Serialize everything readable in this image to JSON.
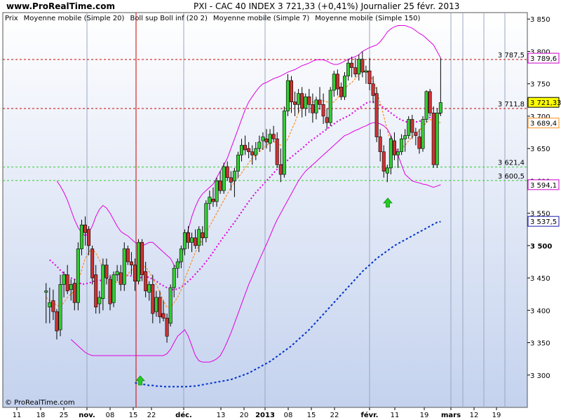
{
  "header": {
    "site": "www.ProRealTime.com",
    "title": "PXI - CAC 40 INDEX    3 721,33 (+0,41%)    Journalier  25 févr. 2013"
  },
  "legend": [
    {
      "label": "Prix",
      "color": "#000000"
    },
    {
      "label": "Moyenne mobile (Simple 20)",
      "color": "#cc00cc"
    },
    {
      "label": "Boll sup Boll inf (20 2)",
      "color": "#cc00cc"
    },
    {
      "label": "Moyenne mobile (Simple 7)",
      "color": "#ff8c1a"
    },
    {
      "label": "Moyenne mobile (Simple 150)",
      "color": "#1a1aaa"
    }
  ],
  "copyright": "© ProRealTime.com",
  "colors": {
    "up": "#33cc33",
    "down": "#cc3333",
    "bollinger": "#e000e0",
    "ma20": "#e000e0",
    "ma7": "#ff8c1a",
    "ma150": "#0033cc",
    "resistance": "#cc0000",
    "support": "#33cc33"
  },
  "price_tags": [
    {
      "value": "3 789,6",
      "border": "#cc00cc",
      "bg": "#ffffff",
      "text": "#cc00cc"
    },
    {
      "value": "3 721,33",
      "border": "#000000",
      "bg": "#ffff00",
      "text": "#000000"
    },
    {
      "value": "3 689,4",
      "border": "#ff8c1a",
      "bg": "#ffffff",
      "text": "#ff8c1a"
    },
    {
      "value": "3 594,1",
      "border": "#cc00cc",
      "bg": "#ffffff",
      "text": "#cc00cc"
    },
    {
      "value": "3 537,5",
      "border": "#1a1aaa",
      "bg": "#ffffff",
      "text": "#1a1aaa"
    }
  ],
  "hlines": [
    {
      "label": "3 787,5",
      "color": "#cc0000"
    },
    {
      "label": "3 711,8",
      "color": "#cc0000"
    },
    {
      "label": "3 621,4",
      "color": "#33cc33"
    },
    {
      "label": "3 600,5",
      "color": "#33cc33"
    }
  ],
  "chart_data": {
    "type": "candlestick",
    "ylim": [
      3250,
      3860
    ],
    "y_ticks": [
      "3 300",
      "3 350",
      "3 400",
      "3 450",
      "3 500",
      "3 550",
      "3 600",
      "3 650",
      "3 700",
      "3 750",
      "3 800",
      "3 850"
    ],
    "x_ticks": [
      "11",
      "18",
      "25",
      "nov.",
      "08",
      "15",
      "22",
      "déc.",
      "13",
      "20",
      "2013",
      "08",
      "15",
      "22",
      "févr.",
      "11",
      "19",
      "mars",
      "12",
      "19"
    ],
    "bold_x_ticks": [
      "nov.",
      "déc.",
      "2013",
      "févr.",
      "mars"
    ],
    "horizontal_levels": [
      3787.5,
      3711.8,
      3621.4,
      3600.5
    ],
    "candles_ohlc": [
      [
        3428,
        3442,
        3380,
        3430
      ],
      [
        3405,
        3435,
        3380,
        3412
      ],
      [
        3415,
        3432,
        3385,
        3398
      ],
      [
        3398,
        3402,
        3355,
        3368
      ],
      [
        3370,
        3455,
        3360,
        3440
      ],
      [
        3440,
        3460,
        3420,
        3455
      ],
      [
        3455,
        3470,
        3425,
        3430
      ],
      [
        3432,
        3448,
        3415,
        3440
      ],
      [
        3442,
        3448,
        3400,
        3412
      ],
      [
        3412,
        3505,
        3400,
        3495
      ],
      [
        3495,
        3540,
        3485,
        3532
      ],
      [
        3532,
        3545,
        3500,
        3520
      ],
      [
        3525,
        3530,
        3485,
        3500
      ],
      [
        3495,
        3500,
        3440,
        3450
      ],
      [
        3455,
        3470,
        3395,
        3405
      ],
      [
        3410,
        3430,
        3395,
        3420
      ],
      [
        3418,
        3480,
        3400,
        3470
      ],
      [
        3470,
        3480,
        3440,
        3450
      ],
      [
        3448,
        3455,
        3400,
        3410
      ],
      [
        3412,
        3460,
        3405,
        3455
      ],
      [
        3455,
        3470,
        3445,
        3460
      ],
      [
        3458,
        3470,
        3430,
        3440
      ],
      [
        3440,
        3505,
        3430,
        3495
      ],
      [
        3495,
        3500,
        3470,
        3475
      ],
      [
        3475,
        3490,
        3455,
        3470
      ],
      [
        3470,
        3480,
        3430,
        3445
      ],
      [
        3445,
        3510,
        3440,
        3505
      ],
      [
        3505,
        3510,
        3445,
        3455
      ],
      [
        3460,
        3475,
        3420,
        3430
      ],
      [
        3428,
        3445,
        3415,
        3440
      ],
      [
        3440,
        3455,
        3380,
        3395
      ],
      [
        3398,
        3430,
        3390,
        3420
      ],
      [
        3420,
        3430,
        3380,
        3390
      ],
      [
        3395,
        3415,
        3383,
        3388
      ],
      [
        3388,
        3395,
        3350,
        3360
      ],
      [
        3380,
        3440,
        3375,
        3435
      ],
      [
        3435,
        3470,
        3420,
        3465
      ],
      [
        3465,
        3480,
        3450,
        3475
      ],
      [
        3475,
        3500,
        3465,
        3495
      ],
      [
        3495,
        3525,
        3485,
        3520
      ],
      [
        3520,
        3530,
        3495,
        3505
      ],
      [
        3505,
        3520,
        3490,
        3512
      ],
      [
        3512,
        3525,
        3495,
        3500
      ],
      [
        3500,
        3530,
        3490,
        3525
      ],
      [
        3520,
        3530,
        3500,
        3512
      ],
      [
        3512,
        3570,
        3505,
        3565
      ],
      [
        3565,
        3585,
        3555,
        3575
      ],
      [
        3572,
        3590,
        3560,
        3568
      ],
      [
        3568,
        3605,
        3560,
        3600
      ],
      [
        3600,
        3615,
        3580,
        3585
      ],
      [
        3585,
        3628,
        3580,
        3622
      ],
      [
        3622,
        3630,
        3600,
        3605
      ],
      [
        3605,
        3615,
        3585,
        3598
      ],
      [
        3600,
        3620,
        3575,
        3615
      ],
      [
        3615,
        3645,
        3605,
        3640
      ],
      [
        3640,
        3665,
        3630,
        3655
      ],
      [
        3655,
        3670,
        3640,
        3648
      ],
      [
        3650,
        3660,
        3635,
        3645
      ],
      [
        3645,
        3655,
        3625,
        3640
      ],
      [
        3640,
        3660,
        3632,
        3650
      ],
      [
        3650,
        3670,
        3645,
        3660
      ],
      [
        3662,
        3675,
        3648,
        3668
      ],
      [
        3665,
        3680,
        3650,
        3660
      ],
      [
        3658,
        3680,
        3645,
        3672
      ],
      [
        3672,
        3685,
        3660,
        3665
      ],
      [
        3665,
        3675,
        3620,
        3625
      ],
      [
        3625,
        3650,
        3598,
        3610
      ],
      [
        3610,
        3715,
        3605,
        3708
      ],
      [
        3708,
        3765,
        3700,
        3755
      ],
      [
        3755,
        3762,
        3705,
        3722
      ],
      [
        3722,
        3738,
        3700,
        3718
      ],
      [
        3718,
        3742,
        3705,
        3735
      ],
      [
        3735,
        3745,
        3698,
        3712
      ],
      [
        3712,
        3735,
        3700,
        3730
      ],
      [
        3730,
        3742,
        3705,
        3718
      ],
      [
        3718,
        3735,
        3690,
        3705
      ],
      [
        3705,
        3730,
        3695,
        3725
      ],
      [
        3725,
        3745,
        3710,
        3718
      ],
      [
        3718,
        3735,
        3688,
        3700
      ],
      [
        3698,
        3712,
        3680,
        3690
      ],
      [
        3690,
        3745,
        3685,
        3740
      ],
      [
        3740,
        3770,
        3730,
        3765
      ],
      [
        3765,
        3772,
        3732,
        3742
      ],
      [
        3745,
        3752,
        3725,
        3730
      ],
      [
        3730,
        3768,
        3725,
        3762
      ],
      [
        3762,
        3788,
        3755,
        3782
      ],
      [
        3782,
        3792,
        3760,
        3775
      ],
      [
        3775,
        3790,
        3760,
        3765
      ],
      [
        3765,
        3795,
        3755,
        3788
      ],
      [
        3788,
        3800,
        3760,
        3768
      ],
      [
        3768,
        3778,
        3750,
        3770
      ],
      [
        3770,
        3790,
        3740,
        3750
      ],
      [
        3750,
        3762,
        3720,
        3732
      ],
      [
        3735,
        3745,
        3660,
        3668
      ],
      [
        3668,
        3680,
        3630,
        3645
      ],
      [
        3645,
        3655,
        3605,
        3615
      ],
      [
        3612,
        3625,
        3598,
        3620
      ],
      [
        3620,
        3670,
        3610,
        3665
      ],
      [
        3662,
        3675,
        3632,
        3640
      ],
      [
        3640,
        3650,
        3620,
        3645
      ],
      [
        3645,
        3672,
        3640,
        3665
      ],
      [
        3665,
        3680,
        3645,
        3670
      ],
      [
        3670,
        3700,
        3665,
        3695
      ],
      [
        3695,
        3702,
        3665,
        3675
      ],
      [
        3675,
        3682,
        3655,
        3670
      ],
      [
        3668,
        3680,
        3642,
        3650
      ],
      [
        3650,
        3700,
        3645,
        3695
      ],
      [
        3695,
        3740,
        3690,
        3738
      ],
      [
        3738,
        3742,
        3700,
        3705
      ],
      [
        3705,
        3715,
        3620,
        3625
      ],
      [
        3625,
        3712,
        3620,
        3705
      ],
      [
        3705,
        3790,
        3700,
        3721
      ]
    ],
    "series": [
      {
        "name": "Moyenne mobile (Simple 20)",
        "x_end": 122,
        "values": [
          3478,
          3473,
          3468,
          3462,
          3457,
          3452,
          3450,
          3448,
          3444,
          3440,
          3441,
          3442,
          3444,
          3446,
          3446,
          3447,
          3449,
          3451,
          3452,
          3455,
          3455,
          3454,
          3454,
          3453,
          3451,
          3450,
          3451,
          3452,
          3451,
          3448,
          3445,
          3441,
          3438,
          3435,
          3432,
          3432,
          3433,
          3436,
          3440,
          3445,
          3450,
          3456,
          3462,
          3468,
          3475,
          3482,
          3490,
          3498,
          3506,
          3514,
          3521,
          3529,
          3536,
          3544,
          3552,
          3560,
          3568,
          3575,
          3582,
          3588,
          3594,
          3600,
          3606,
          3612,
          3618,
          3623,
          3628,
          3632,
          3637,
          3641,
          3646,
          3650,
          3655,
          3660,
          3664,
          3668,
          3672,
          3676,
          3680,
          3684,
          3688,
          3692,
          3695,
          3698,
          3700,
          3704,
          3708,
          3712,
          3716,
          3720,
          3722,
          3722,
          3720,
          3717,
          3713,
          3709,
          3705,
          3701,
          3697,
          3694,
          3692,
          3690,
          3690,
          3691,
          3692,
          3694,
          3696,
          3698,
          3700,
          3702,
          3705
        ]
      },
      {
        "name": "Moyenne mobile (Simple 7)",
        "x_end": 122,
        "values": [
          3420,
          3415,
          3412,
          3408,
          3405,
          3412,
          3420,
          3425,
          3430,
          3445,
          3462,
          3480,
          3490,
          3495,
          3488,
          3478,
          3465,
          3455,
          3448,
          3445,
          3443,
          3444,
          3448,
          3456,
          3462,
          3465,
          3466,
          3468,
          3467,
          3460,
          3450,
          3440,
          3428,
          3415,
          3405,
          3405,
          3412,
          3420,
          3432,
          3448,
          3462,
          3476,
          3490,
          3500,
          3510,
          3520,
          3530,
          3540,
          3550,
          3560,
          3570,
          3580,
          3590,
          3598,
          3605,
          3612,
          3620,
          3628,
          3635,
          3640,
          3645,
          3650,
          3655,
          3658,
          3660,
          3660,
          3655,
          3655,
          3665,
          3678,
          3690,
          3705,
          3715,
          3720,
          3722,
          3722,
          3722,
          3723,
          3724,
          3722,
          3720,
          3722,
          3728,
          3735,
          3742,
          3748,
          3752,
          3758,
          3765,
          3770,
          3770,
          3765,
          3755,
          3740,
          3720,
          3700,
          3678,
          3660,
          3650,
          3648,
          3650,
          3655,
          3662,
          3668,
          3673,
          3678,
          3684,
          3690,
          3695,
          3692,
          3690,
          3690
        ]
      },
      {
        "name": "Boll sup",
        "x_end": 122,
        "values": [
          3600,
          3592,
          3582,
          3570,
          3555,
          3540,
          3528,
          3520,
          3515,
          3520,
          3530,
          3545,
          3556,
          3562,
          3558,
          3550,
          3540,
          3530,
          3522,
          3518,
          3515,
          3510,
          3505,
          3502,
          3500,
          3502,
          3505,
          3505,
          3500,
          3495,
          3490,
          3485,
          3480,
          3470,
          3465,
          3480,
          3505,
          3525,
          3545,
          3560,
          3572,
          3580,
          3585,
          3590,
          3595,
          3605,
          3615,
          3625,
          3635,
          3650,
          3665,
          3680,
          3695,
          3710,
          3722,
          3730,
          3738,
          3745,
          3750,
          3752,
          3755,
          3758,
          3760,
          3762,
          3765,
          3768,
          3770,
          3772,
          3775,
          3778,
          3780,
          3782,
          3785,
          3787,
          3787,
          3787,
          3785,
          3782,
          3780,
          3780,
          3782,
          3785,
          3788,
          3790,
          3792,
          3795,
          3800,
          3803,
          3806,
          3808,
          3810,
          3815,
          3822,
          3830,
          3835,
          3838,
          3840,
          3840,
          3840,
          3838,
          3836,
          3832,
          3828,
          3825,
          3820,
          3815,
          3810,
          3800,
          3790
        ]
      },
      {
        "name": "Boll inf",
        "x_end": 122,
        "values": [
          3355,
          3350,
          3345,
          3340,
          3335,
          3332,
          3330,
          3330,
          3330,
          3330,
          3330,
          3330,
          3330,
          3330,
          3330,
          3330,
          3330,
          3330,
          3330,
          3330,
          3330,
          3330,
          3330,
          3330,
          3330,
          3330,
          3330,
          3333,
          3340,
          3350,
          3360,
          3365,
          3370,
          3360,
          3345,
          3330,
          3322,
          3320,
          3320,
          3320,
          3322,
          3325,
          3330,
          3340,
          3352,
          3365,
          3380,
          3395,
          3410,
          3425,
          3440,
          3452,
          3465,
          3478,
          3490,
          3502,
          3515,
          3528,
          3540,
          3550,
          3560,
          3570,
          3580,
          3590,
          3600,
          3608,
          3615,
          3620,
          3625,
          3630,
          3635,
          3640,
          3645,
          3650,
          3655,
          3660,
          3665,
          3670,
          3672,
          3675,
          3678,
          3680,
          3683,
          3685,
          3688,
          3690,
          3690,
          3688,
          3685,
          3680,
          3670,
          3655,
          3640,
          3625,
          3610,
          3605,
          3600,
          3598,
          3597,
          3595,
          3594,
          3592,
          3590,
          3592,
          3594
        ]
      },
      {
        "name": "Moyenne mobile (Simple 150)",
        "x_end": 122,
        "values": [
          3288,
          3287,
          3286,
          3285,
          3284,
          3284,
          3283,
          3283,
          3282,
          3282,
          3282,
          3282,
          3282,
          3282,
          3282,
          3282,
          3283,
          3283,
          3284,
          3285,
          3286,
          3287,
          3288,
          3289,
          3290,
          3291,
          3292,
          3293,
          3295,
          3297,
          3299,
          3301,
          3303,
          3306,
          3309,
          3312,
          3315,
          3318,
          3321,
          3325,
          3329,
          3333,
          3337,
          3341,
          3345,
          3350,
          3355,
          3360,
          3365,
          3370,
          3376,
          3382,
          3388,
          3394,
          3400,
          3406,
          3412,
          3418,
          3424,
          3430,
          3436,
          3442,
          3448,
          3454,
          3460,
          3465,
          3470,
          3475,
          3480,
          3484,
          3488,
          3492,
          3496,
          3500,
          3503,
          3506,
          3509,
          3512,
          3515,
          3518,
          3521,
          3524,
          3527,
          3530,
          3533,
          3536,
          3537
        ]
      }
    ],
    "annotations": [
      "vertical red line near 18 Oct 2012",
      "green up-arrows (buy signals)"
    ]
  }
}
